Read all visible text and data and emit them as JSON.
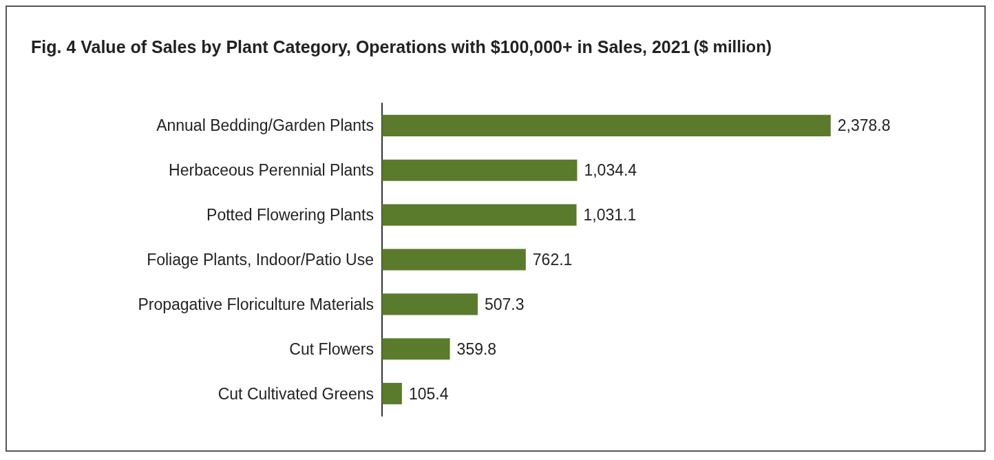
{
  "chart_data": {
    "type": "bar",
    "orientation": "horizontal",
    "title": "Fig. 4 Value of Sales by Plant Category, Operations with $100,000+ in Sales, 2021",
    "subtitle": "($ million)",
    "categories": [
      "Annual Bedding/Garden Plants",
      "Herbaceous Perennial Plants",
      "Potted Flowering Plants",
      "Foliage Plants, Indoor/Patio Use",
      "Propagative Floriculture Materials",
      "Cut Flowers",
      "Cut Cultivated Greens"
    ],
    "values": [
      2378.8,
      1034.4,
      1031.1,
      762.1,
      507.3,
      359.8,
      105.4
    ],
    "value_labels": [
      "2,378.8",
      "1,034.4",
      "1,031.1",
      "762.1",
      "507.3",
      "359.8",
      "105.4"
    ],
    "color": "#5b7b2c"
  }
}
